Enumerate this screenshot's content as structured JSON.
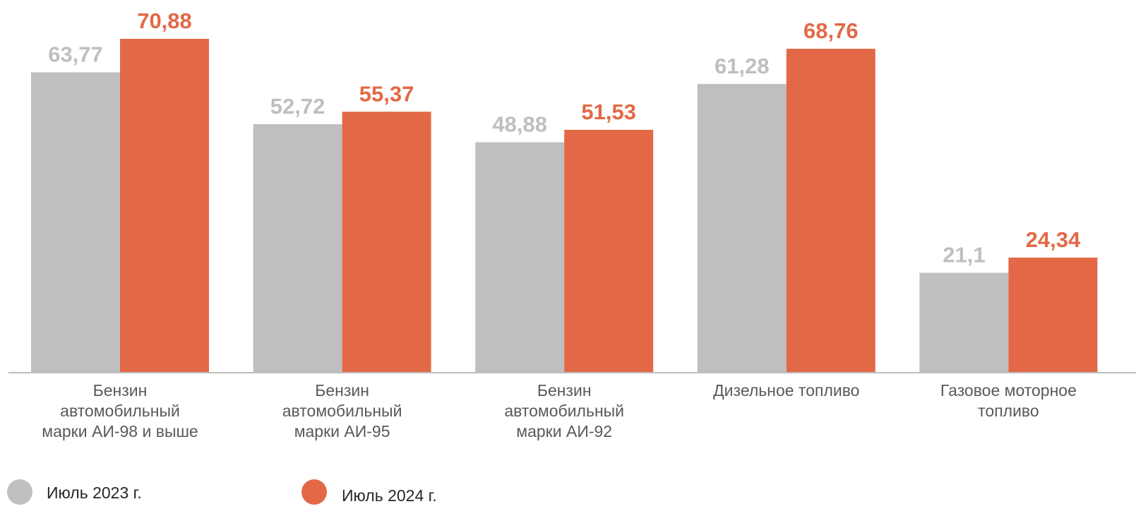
{
  "chart_data": {
    "type": "bar",
    "categories": [
      [
        "Бензин",
        "автомобильный",
        "марки АИ-98 и выше"
      ],
      [
        "Бензин",
        "автомобильный",
        "марки АИ-95"
      ],
      [
        "Бензин",
        "автомобильный",
        "марки АИ-92"
      ],
      [
        "Дизельное топливо"
      ],
      [
        "Газовое моторное",
        "топливо"
      ]
    ],
    "series": [
      {
        "name": "Июль 2023 г.",
        "color": "#bfbfbf",
        "values": [
          63.77,
          52.72,
          48.88,
          61.28,
          21.1
        ],
        "labels": [
          "63,77",
          "52,72",
          "48,88",
          "61,28",
          "21,1"
        ]
      },
      {
        "name": "Июль 2024 г.",
        "color": "#e36946",
        "values": [
          70.88,
          55.37,
          51.53,
          68.76,
          24.34
        ],
        "labels": [
          "70,88",
          "55,37",
          "51,53",
          "68,76",
          "24,34"
        ]
      }
    ],
    "ylim": [
      0,
      80
    ],
    "grid": false,
    "y_axis_visible": false,
    "axis_line_color": "#bfbfbf",
    "legend_position": "bottom-left"
  }
}
